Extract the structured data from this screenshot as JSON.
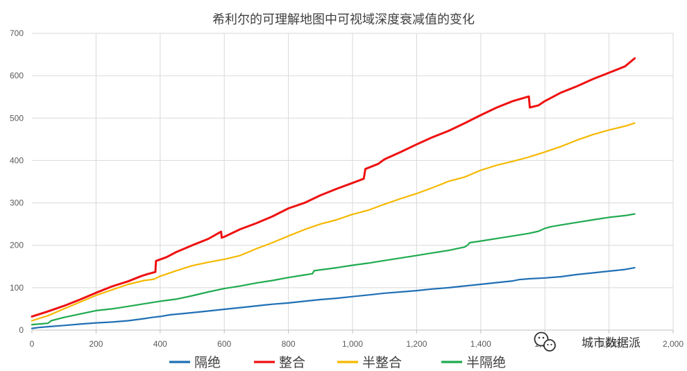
{
  "chart_data": {
    "type": "line",
    "title": "希利尔的可理解地图中可视域深度衰减值的变化",
    "xlabel": "",
    "ylabel": "",
    "xlim": [
      0,
      2000
    ],
    "ylim": [
      0,
      700
    ],
    "x_ticks": [
      0,
      200,
      400,
      600,
      800,
      1000,
      1200,
      1400,
      1600,
      1800,
      2000
    ],
    "x_tick_labels": [
      "0",
      "200",
      "400",
      "600",
      "800",
      "1,000",
      "1,200",
      "1,400",
      "1,600",
      "1,800",
      "2,000"
    ],
    "y_ticks": [
      0,
      100,
      200,
      300,
      400,
      500,
      600,
      700
    ],
    "y_tick_labels": [
      "0",
      "100",
      "200",
      "300",
      "400",
      "500",
      "600",
      "700"
    ],
    "grid": true,
    "legend_position": "bottom",
    "series": [
      {
        "name": "隔绝",
        "color": "#1f6fb5",
        "points": [
          [
            0,
            4
          ],
          [
            20,
            6
          ],
          [
            50,
            8
          ],
          [
            100,
            11
          ],
          [
            150,
            14
          ],
          [
            200,
            17
          ],
          [
            250,
            19
          ],
          [
            300,
            22
          ],
          [
            350,
            27
          ],
          [
            375,
            30
          ],
          [
            400,
            32
          ],
          [
            430,
            36
          ],
          [
            500,
            41
          ],
          [
            550,
            45
          ],
          [
            600,
            49
          ],
          [
            650,
            53
          ],
          [
            700,
            57
          ],
          [
            750,
            61
          ],
          [
            800,
            64
          ],
          [
            850,
            68
          ],
          [
            900,
            72
          ],
          [
            950,
            75
          ],
          [
            1000,
            79
          ],
          [
            1050,
            83
          ],
          [
            1100,
            87
          ],
          [
            1150,
            90
          ],
          [
            1200,
            93
          ],
          [
            1250,
            97
          ],
          [
            1300,
            100
          ],
          [
            1350,
            104
          ],
          [
            1400,
            108
          ],
          [
            1450,
            112
          ],
          [
            1500,
            116
          ],
          [
            1520,
            119
          ],
          [
            1550,
            121
          ],
          [
            1600,
            123
          ],
          [
            1650,
            126
          ],
          [
            1700,
            131
          ],
          [
            1750,
            135
          ],
          [
            1800,
            139
          ],
          [
            1850,
            143
          ],
          [
            1880,
            147
          ]
        ]
      },
      {
        "name": "整合",
        "color": "#ee1111",
        "points": [
          [
            0,
            32
          ],
          [
            25,
            38
          ],
          [
            50,
            44
          ],
          [
            100,
            57
          ],
          [
            150,
            72
          ],
          [
            200,
            88
          ],
          [
            250,
            103
          ],
          [
            300,
            115
          ],
          [
            340,
            127
          ],
          [
            360,
            132
          ],
          [
            385,
            137
          ],
          [
            387,
            163
          ],
          [
            420,
            172
          ],
          [
            450,
            184
          ],
          [
            500,
            200
          ],
          [
            550,
            215
          ],
          [
            590,
            232
          ],
          [
            592,
            218
          ],
          [
            600,
            220
          ],
          [
            650,
            238
          ],
          [
            700,
            252
          ],
          [
            750,
            268
          ],
          [
            800,
            287
          ],
          [
            850,
            300
          ],
          [
            900,
            318
          ],
          [
            950,
            333
          ],
          [
            1000,
            347
          ],
          [
            1035,
            357
          ],
          [
            1040,
            380
          ],
          [
            1080,
            392
          ],
          [
            1100,
            403
          ],
          [
            1150,
            420
          ],
          [
            1200,
            438
          ],
          [
            1250,
            455
          ],
          [
            1300,
            470
          ],
          [
            1350,
            488
          ],
          [
            1400,
            507
          ],
          [
            1450,
            525
          ],
          [
            1500,
            540
          ],
          [
            1550,
            551
          ],
          [
            1553,
            525
          ],
          [
            1580,
            530
          ],
          [
            1600,
            540
          ],
          [
            1650,
            560
          ],
          [
            1700,
            575
          ],
          [
            1750,
            592
          ],
          [
            1800,
            607
          ],
          [
            1850,
            622
          ],
          [
            1880,
            641
          ]
        ]
      },
      {
        "name": "半整合",
        "color": "#f5b800",
        "points": [
          [
            0,
            22
          ],
          [
            50,
            34
          ],
          [
            100,
            50
          ],
          [
            150,
            66
          ],
          [
            200,
            82
          ],
          [
            250,
            95
          ],
          [
            300,
            108
          ],
          [
            350,
            117
          ],
          [
            380,
            120
          ],
          [
            400,
            127
          ],
          [
            450,
            140
          ],
          [
            500,
            152
          ],
          [
            550,
            160
          ],
          [
            600,
            167
          ],
          [
            650,
            176
          ],
          [
            700,
            192
          ],
          [
            750,
            206
          ],
          [
            800,
            222
          ],
          [
            850,
            237
          ],
          [
            900,
            250
          ],
          [
            950,
            260
          ],
          [
            1000,
            273
          ],
          [
            1050,
            283
          ],
          [
            1100,
            297
          ],
          [
            1150,
            310
          ],
          [
            1200,
            322
          ],
          [
            1250,
            336
          ],
          [
            1300,
            351
          ],
          [
            1350,
            361
          ],
          [
            1400,
            377
          ],
          [
            1450,
            389
          ],
          [
            1500,
            398
          ],
          [
            1550,
            408
          ],
          [
            1600,
            420
          ],
          [
            1650,
            433
          ],
          [
            1700,
            448
          ],
          [
            1750,
            461
          ],
          [
            1800,
            472
          ],
          [
            1850,
            481
          ],
          [
            1880,
            488
          ]
        ]
      },
      {
        "name": "半隔绝",
        "color": "#1faa4f",
        "points": [
          [
            0,
            13
          ],
          [
            50,
            16
          ],
          [
            60,
            22
          ],
          [
            100,
            30
          ],
          [
            150,
            38
          ],
          [
            200,
            46
          ],
          [
            250,
            50
          ],
          [
            300,
            56
          ],
          [
            350,
            62
          ],
          [
            400,
            68
          ],
          [
            450,
            73
          ],
          [
            500,
            81
          ],
          [
            550,
            90
          ],
          [
            600,
            98
          ],
          [
            650,
            104
          ],
          [
            700,
            111
          ],
          [
            750,
            117
          ],
          [
            800,
            124
          ],
          [
            850,
            130
          ],
          [
            875,
            133
          ],
          [
            880,
            140
          ],
          [
            950,
            147
          ],
          [
            1000,
            153
          ],
          [
            1050,
            158
          ],
          [
            1100,
            164
          ],
          [
            1150,
            170
          ],
          [
            1200,
            176
          ],
          [
            1250,
            182
          ],
          [
            1300,
            188
          ],
          [
            1350,
            196
          ],
          [
            1360,
            201
          ],
          [
            1365,
            206
          ],
          [
            1400,
            210
          ],
          [
            1450,
            216
          ],
          [
            1500,
            222
          ],
          [
            1550,
            228
          ],
          [
            1580,
            233
          ],
          [
            1600,
            240
          ],
          [
            1620,
            244
          ],
          [
            1650,
            248
          ],
          [
            1700,
            254
          ],
          [
            1750,
            260
          ],
          [
            1800,
            266
          ],
          [
            1850,
            270
          ],
          [
            1880,
            274
          ]
        ]
      }
    ]
  },
  "watermark": {
    "icon": "wechat-icon",
    "text": "城市数据派"
  }
}
